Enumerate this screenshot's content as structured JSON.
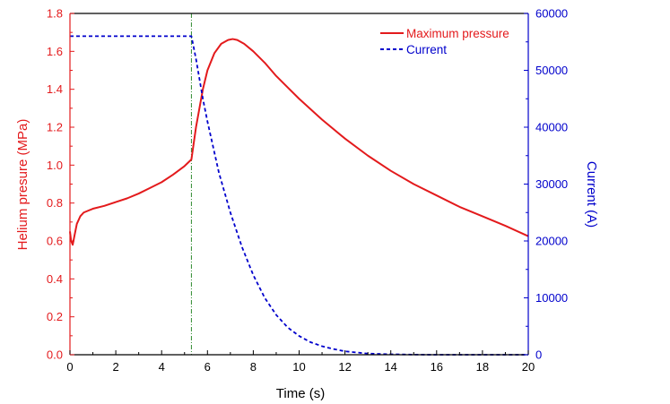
{
  "chart_data": {
    "type": "line",
    "xlabel": "Time (s)",
    "ylabel_left": "Helium presure (MPa)",
    "ylabel_right": "Current (A)",
    "xlim": [
      0,
      20
    ],
    "ylim_left": [
      0,
      1.8
    ],
    "ylim_right": [
      0,
      60000
    ],
    "x_ticks": [
      "0",
      "2",
      "4",
      "6",
      "8",
      "10",
      "12",
      "14",
      "16",
      "18",
      "20"
    ],
    "y_left_ticks": [
      "0.0",
      "0.2",
      "0.4",
      "0.6",
      "0.8",
      "1.0",
      "1.2",
      "1.4",
      "1.6",
      "1.8"
    ],
    "y_right_ticks": [
      "0",
      "10000",
      "20000",
      "30000",
      "40000",
      "50000",
      "60000"
    ],
    "grid": false,
    "legend_position": "top-right",
    "colors": {
      "pressure": "#e31a1c",
      "current": "#0000cc",
      "marker_line": "#2e8b2e",
      "axis_left": "#e31a1c",
      "axis_right": "#0000cc",
      "axis_bottom": "#000000"
    },
    "series": [
      {
        "name": "Maximum pressure",
        "axis": "left",
        "style": "solid",
        "x": [
          0.0,
          0.05,
          0.12,
          0.2,
          0.3,
          0.45,
          0.6,
          0.8,
          1.0,
          1.5,
          2.0,
          2.5,
          3.0,
          3.5,
          4.0,
          4.5,
          5.0,
          5.3,
          5.5,
          5.8,
          6.0,
          6.3,
          6.6,
          6.9,
          7.1,
          7.3,
          7.6,
          8.0,
          8.5,
          9.0,
          9.5,
          10.0,
          11.0,
          12.0,
          13.0,
          14.0,
          15.0,
          16.0,
          17.0,
          18.0,
          19.0,
          20.0
        ],
        "values": [
          0.65,
          0.6,
          0.58,
          0.63,
          0.69,
          0.73,
          0.75,
          0.76,
          0.77,
          0.785,
          0.805,
          0.825,
          0.85,
          0.88,
          0.91,
          0.95,
          0.995,
          1.03,
          1.2,
          1.4,
          1.5,
          1.59,
          1.64,
          1.66,
          1.665,
          1.66,
          1.64,
          1.6,
          1.54,
          1.47,
          1.41,
          1.35,
          1.24,
          1.14,
          1.05,
          0.97,
          0.9,
          0.84,
          0.78,
          0.73,
          0.68,
          0.625
        ]
      },
      {
        "name": "Current",
        "axis": "right",
        "style": "dashed",
        "x": [
          0.0,
          5.3,
          5.5,
          5.8,
          6.0,
          6.5,
          7.0,
          7.5,
          8.0,
          8.5,
          9.0,
          9.5,
          10.0,
          10.5,
          11.0,
          11.5,
          12.0,
          12.5,
          13.0,
          14.0,
          15.0,
          16.0,
          18.0,
          20.0
        ],
        "values": [
          56000,
          56000,
          52000,
          45000,
          41000,
          32000,
          25000,
          19000,
          14000,
          10000,
          7000,
          4800,
          3300,
          2200,
          1500,
          1000,
          600,
          400,
          200,
          80,
          20,
          0,
          0,
          0
        ]
      }
    ],
    "annotations": [
      {
        "type": "vertical_line",
        "x": 5.3,
        "style": "dash-dot"
      }
    ]
  }
}
